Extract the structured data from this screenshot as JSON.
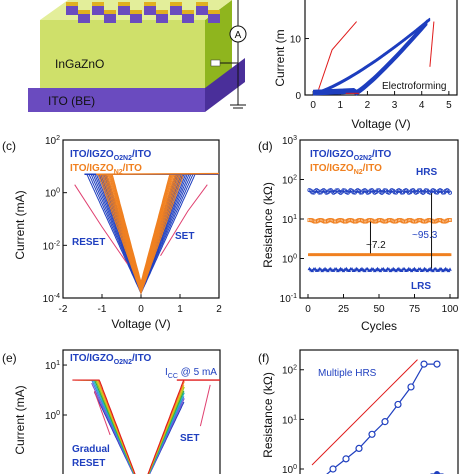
{
  "colors": {
    "blue": "#1f3fbf",
    "orange": "#f08020",
    "pink": "#e04070",
    "red": "#e01b1b",
    "violet": "#7b4fd1",
    "green": "#2aa84a",
    "device_body": "#cfe06a",
    "device_side": "#8fb51e",
    "device_be": "#6a4bbf",
    "pillar": "#6a4bbf",
    "pillar_top": "#e0b020"
  },
  "panels": {
    "b_partial": {
      "label": "",
      "ylabel": "Current (m",
      "xlabel": "Voltage (V)",
      "annotation": "Electroforming"
    },
    "c": {
      "label": "(c)",
      "legend1": "ITO/IGZO",
      "legend1_sub": "O2N2",
      "legend1_tail": "/ITO",
      "legend2": "ITO/IGZO",
      "legend2_sub": "N2",
      "legend2_tail": "/ITO",
      "reset": "RESET",
      "set": "SET",
      "xlabel": "Voltage (V)",
      "ylabel": "Current (mA)"
    },
    "d": {
      "label": "(d)",
      "legend1": "ITO/IGZO",
      "legend1_sub": "O2N2",
      "legend1_tail": "/ITO",
      "legend2": "ITO/IGZO",
      "legend2_sub": "N2",
      "legend2_tail": "/ITO",
      "hrs": "HRS",
      "lrs": "LRS",
      "ratio1": "~95.3",
      "ratio2": "~7.2",
      "xlabel": "Cycles",
      "ylabel": "Resistance (kΩ)"
    },
    "e": {
      "label": "(e)",
      "legend1": "ITO/IGZO",
      "legend1_sub": "O2N2",
      "legend1_tail": "/ITO",
      "icc": "I",
      "icc_sub": "CC",
      "icc_tail": " @ 5 mA",
      "gradual": "Gradual",
      "reset": "RESET",
      "set": "SET",
      "ylabel": "Current (mA)"
    },
    "f": {
      "label": "(f)",
      "note": "Multiple HRS",
      "ylabel": "Resistance (kΩ)"
    },
    "device": {
      "material": "InGaZnO",
      "be": "ITO (BE)",
      "ammeter": "A"
    }
  },
  "chart_data": [
    {
      "id": "b",
      "type": "line",
      "xlabel": "Voltage (V)",
      "ylabel": "Current (m",
      "xlim": [
        -0.3,
        5.3
      ],
      "ylim": [
        0,
        17
      ],
      "xticks": [
        0,
        1,
        2,
        3,
        4,
        5
      ],
      "yticks": [
        0,
        10
      ],
      "annotation": "Electroforming",
      "series": [
        {
          "color": "blue",
          "points": [
            [
              0,
              0
            ],
            [
              0.5,
              0.2
            ],
            [
              1,
              0.8
            ],
            [
              1.5,
              2
            ],
            [
              2,
              4
            ],
            [
              2.5,
              6.5
            ],
            [
              3,
              9
            ],
            [
              3.5,
              11
            ],
            [
              4,
              12.5
            ],
            [
              4.2,
              13
            ]
          ]
        }
      ]
    },
    {
      "id": "c",
      "type": "line",
      "xlabel": "Voltage (V)",
      "ylabel": "Current (mA)",
      "xlim": [
        -2,
        2
      ],
      "ylog": true,
      "ylim": [
        0.0001,
        100
      ],
      "xticks": [
        -2,
        -1,
        0,
        1,
        2
      ],
      "yticks": [
        "10^-4",
        "10^-2",
        "10^0",
        "10^2"
      ],
      "series": [
        {
          "name": "ITO/IGZO_O2N2/ITO",
          "color": "blue",
          "points": [
            [
              -1.4,
              5
            ],
            [
              -1.2,
              4
            ],
            [
              -0.9,
              0.5
            ],
            [
              -0.6,
              0.08
            ],
            [
              -0.3,
              0.01
            ],
            [
              -0.1,
              0.001
            ],
            [
              0,
              0.0002
            ],
            [
              0.1,
              0.001
            ],
            [
              0.4,
              0.02
            ],
            [
              0.7,
              0.3
            ],
            [
              1.0,
              2
            ],
            [
              1.1,
              5
            ],
            [
              2,
              5
            ]
          ]
        },
        {
          "name": "ITO/IGZO_N2/ITO",
          "color": "orange",
          "points": [
            [
              -1.1,
              5
            ],
            [
              -0.8,
              1
            ],
            [
              -0.5,
              0.2
            ],
            [
              -0.2,
              0.02
            ],
            [
              0,
              0.002
            ],
            [
              0.2,
              0.02
            ],
            [
              0.5,
              0.3
            ],
            [
              0.8,
              2
            ],
            [
              1.0,
              5
            ],
            [
              2,
              5
            ]
          ]
        }
      ]
    },
    {
      "id": "d",
      "type": "scatter",
      "xlabel": "Cycles",
      "ylabel": "Resistance (kΩ)",
      "xlim": [
        0,
        100
      ],
      "ylog": true,
      "ylim": [
        0.1,
        1000
      ],
      "xticks": [
        0,
        25,
        50,
        75,
        100
      ],
      "yticks": [
        "10^-1",
        "10^0",
        "10^1",
        "10^2",
        "10^3"
      ],
      "series": [
        {
          "name": "HRS O2N2",
          "color": "blue",
          "value": 50
        },
        {
          "name": "HRS N2",
          "color": "orange",
          "value": 9
        },
        {
          "name": "LRS N2",
          "color": "orange",
          "value": 1.25
        },
        {
          "name": "LRS O2N2",
          "color": "blue",
          "value": 0.52
        }
      ],
      "annotations": [
        "~95.3",
        "~7.2",
        "HRS",
        "LRS"
      ]
    },
    {
      "id": "e",
      "type": "line",
      "ylabel": "Current (mA)",
      "ylog": true,
      "yticks": [
        "10^0",
        "10^1"
      ],
      "series_colors": [
        "#1f3fbf",
        "#7b4fd1",
        "#3a7fe0",
        "#1fb0c8",
        "#2aa84a",
        "#9ac41a",
        "#e0c020",
        "#f08020",
        "#e01b1b"
      ]
    },
    {
      "id": "f",
      "type": "line",
      "ylabel": "Resistance (kΩ)",
      "ylog": true,
      "yticks": [
        "10^0",
        "10^1",
        "10^2"
      ],
      "series": [
        {
          "color": "blue",
          "points": [
            [
              0,
              0.6
            ],
            [
              1,
              1.0
            ],
            [
              2,
              1.6
            ],
            [
              3,
              2.6
            ],
            [
              4,
              5
            ],
            [
              5,
              9
            ],
            [
              6,
              20
            ],
            [
              7,
              45
            ],
            [
              8,
              130
            ],
            [
              9,
              130
            ]
          ]
        }
      ]
    }
  ]
}
